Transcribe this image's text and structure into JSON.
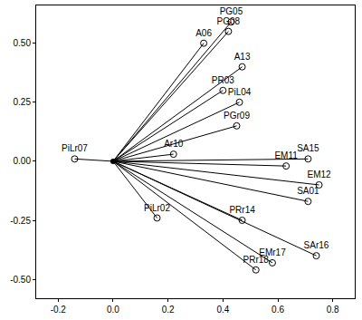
{
  "chart_data": {
    "type": "scatter",
    "labels": [
      "PG05",
      "A06",
      "PG08",
      "A13",
      "PR03",
      "PiL04",
      "PGr09",
      "Ar10",
      "PiLr07",
      "SA15",
      "EM11",
      "EM12",
      "SA01",
      "PiLr02",
      "PRr14",
      "SAr16",
      "EMr17",
      "PRr18"
    ],
    "x": [
      0.43,
      0.33,
      0.42,
      0.47,
      0.4,
      0.46,
      0.45,
      0.22,
      -0.14,
      0.71,
      0.63,
      0.75,
      0.71,
      0.16,
      0.47,
      0.74,
      0.58,
      0.52
    ],
    "values": [
      0.59,
      0.5,
      0.55,
      0.4,
      0.3,
      0.25,
      0.15,
      0.03,
      0.01,
      0.01,
      -0.02,
      -0.1,
      -0.17,
      -0.24,
      -0.25,
      -0.4,
      -0.43,
      -0.46
    ],
    "xlim": [
      -0.28,
      0.88
    ],
    "ylim": [
      -0.58,
      0.66
    ],
    "xticks": [
      -0.2,
      {
        "value": 0,
        "label": "0.0"
      },
      0.2,
      0.4,
      0.6,
      0.8
    ],
    "yticks": [
      {
        "value": -0.5,
        "label": "-0.50"
      },
      -0.25,
      {
        "value": 0,
        "label": "0.00"
      },
      0.25,
      {
        "value": 0.5,
        "label": "0.50"
      }
    ],
    "color": "#000000",
    "marker": "circle-open",
    "line_style": "solid",
    "grid": false
  }
}
